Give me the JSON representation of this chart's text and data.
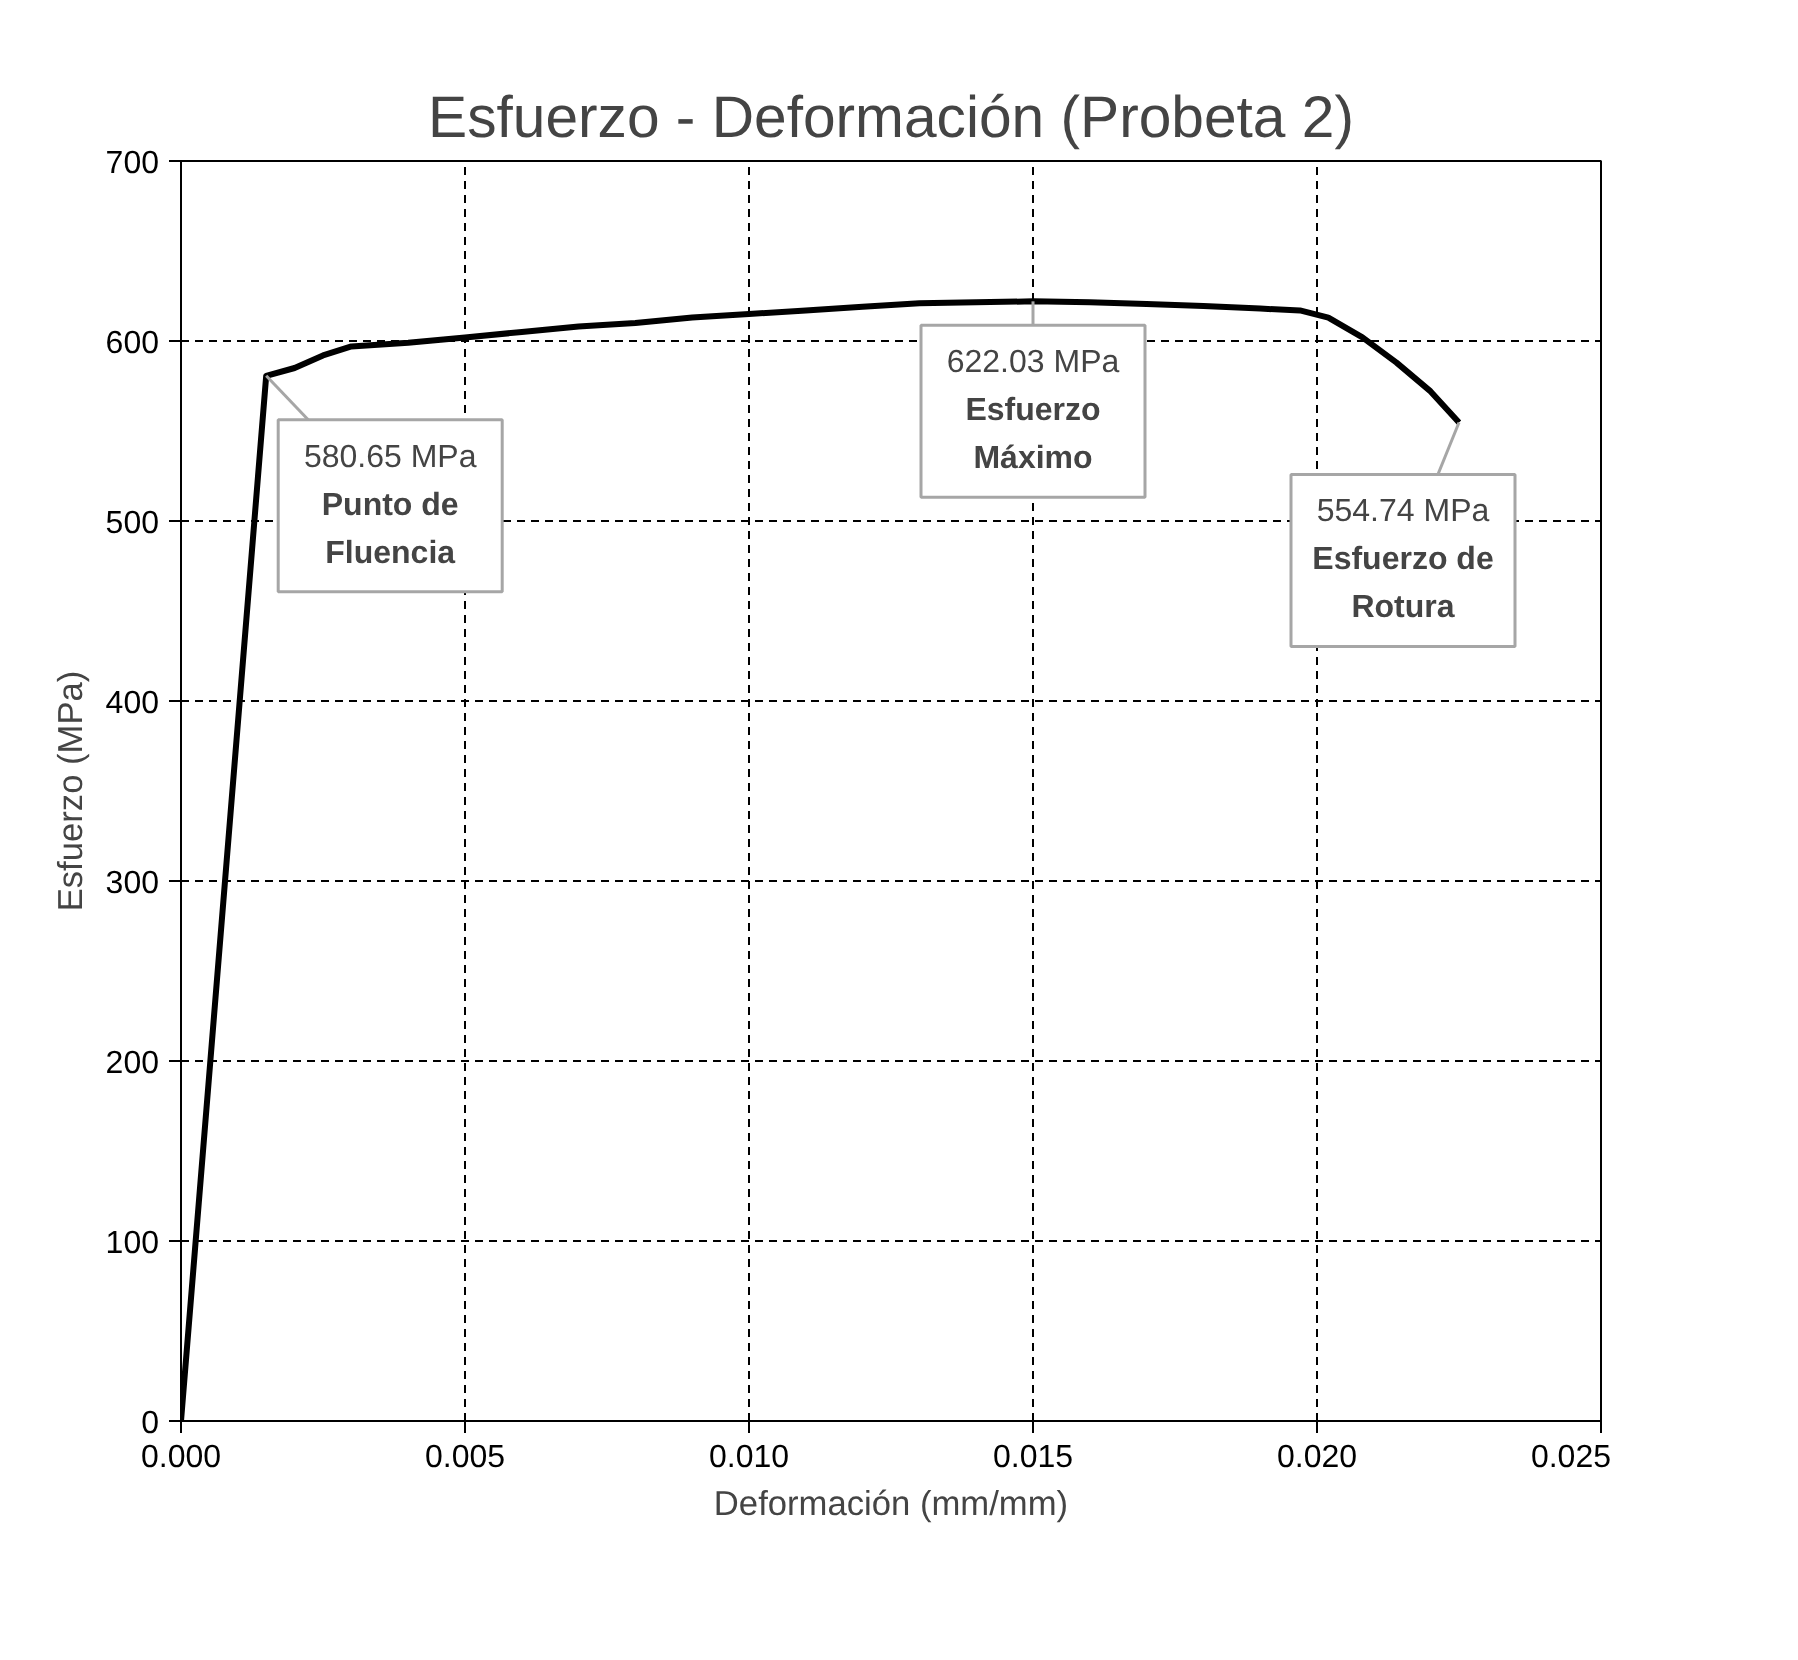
{
  "chart_data": {
    "type": "line",
    "title": "Esfuerzo - Deformación (Probeta 2)",
    "xlabel": "Deformación (mm/mm)",
    "ylabel": "Esfuerzo (MPa)",
    "x": [
      0,
      0.0015,
      0.002,
      0.0025,
      0.003,
      0.004,
      0.005,
      0.006,
      0.007,
      0.008,
      0.009,
      0.01,
      0.011,
      0.012,
      0.013,
      0.014,
      0.015,
      0.016,
      0.017,
      0.018,
      0.019,
      0.0197,
      0.0202,
      0.0208,
      0.0214,
      0.022,
      0.0225
    ],
    "series": [
      {
        "color": "#000000",
        "values": [
          0,
          580.65,
          585,
          592,
          597,
          599,
          602,
          605,
          608,
          610,
          613,
          615,
          617,
          619,
          621,
          621.5,
          622.03,
          621.5,
          620.5,
          619.5,
          618,
          617,
          613,
          602,
          588,
          572,
          554.74
        ]
      }
    ],
    "xlim": [
      0,
      0.025
    ],
    "xticks": [
      {
        "value": 0,
        "label": "0.000"
      },
      {
        "value": 0.005,
        "label": "0.005"
      },
      {
        "value": 0.01,
        "label": "0.010"
      },
      {
        "value": 0.015,
        "label": "0.015"
      },
      {
        "value": 0.02,
        "label": "0.020"
      },
      {
        "value": 0.025,
        "label": "0.025"
      }
    ],
    "ylim": [
      0,
      700
    ],
    "yticks": [
      0,
      100,
      200,
      300,
      400,
      500,
      600,
      700
    ],
    "grid": true,
    "marker": "none",
    "line_style": "solid",
    "annotations": [
      {
        "text": "580.65 MPa\nPunto de\nFluencia",
        "x": 0.0015,
        "y": 580.65
      },
      {
        "text": "622.03 MPa\nEsfuerzo\nMáximo",
        "x": 0.015,
        "y": 622.03
      },
      {
        "text": "554.74 MPa\nEsfuerzo de\nRotura",
        "x": 0.0225,
        "y": 554.74
      }
    ]
  }
}
